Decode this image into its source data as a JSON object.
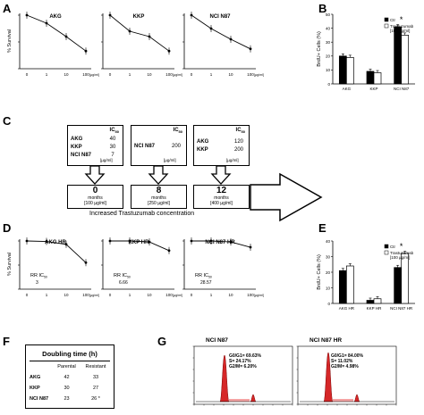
{
  "panel_labels": {
    "a": "A",
    "b": "B",
    "c": "C",
    "d": "D",
    "e": "E",
    "f": "F",
    "g": "G"
  },
  "survival_ylabel": "% Survival",
  "brdu_ylabel": "BrdU+ Cells (%)",
  "unit_label": "[µg/ml]",
  "survival_xticks": [
    "0",
    "1",
    "10",
    "100"
  ],
  "chart_data": [
    {
      "type": "line",
      "title": "AKG",
      "x": [
        "0",
        "1",
        "10",
        "100"
      ],
      "series": [
        {
          "values": [
            100,
            85,
            60,
            33
          ]
        }
      ],
      "ylim": [
        0,
        100
      ],
      "ylabel": "% Survival",
      "xlabel": "[µg/ml]"
    },
    {
      "type": "line",
      "title": "KKP",
      "x": [
        "0",
        "1",
        "10",
        "100"
      ],
      "series": [
        {
          "values": [
            100,
            70,
            60,
            33
          ]
        }
      ],
      "ylim": [
        0,
        100
      ],
      "xlabel": "[µg/ml]"
    },
    {
      "type": "line",
      "title": "NCI N87",
      "x": [
        "0",
        "1",
        "10",
        "100"
      ],
      "series": [
        {
          "values": [
            100,
            75,
            55,
            37
          ]
        }
      ],
      "ylim": [
        0,
        100
      ],
      "xlabel": "[µg/ml]"
    },
    {
      "type": "bar",
      "categories": [
        "AKG",
        "KKP",
        "NCI N87"
      ],
      "series": [
        {
          "name": "Ctr",
          "values": [
            20,
            9,
            41
          ]
        },
        {
          "name": "Trastuzumab [100 µg/ml]",
          "values": [
            19,
            8,
            35
          ]
        }
      ],
      "ylim": [
        0,
        50
      ],
      "yticks": [
        0,
        10,
        20,
        30,
        40,
        50
      ],
      "ylabel": "BrdU+ Cells (%)",
      "annotations": [
        "*"
      ]
    },
    {
      "type": "line",
      "title": "AKG HR",
      "x": [
        "0",
        "1",
        "10",
        "100"
      ],
      "series": [
        {
          "values": [
            100,
            99,
            93,
            55
          ]
        }
      ],
      "ylim": [
        0,
        100
      ],
      "ylabel": "% Survival",
      "xlabel": "[µg/ml]"
    },
    {
      "type": "line",
      "title": "KKP HR",
      "x": [
        "0",
        "1",
        "10",
        "100"
      ],
      "series": [
        {
          "values": [
            100,
            100,
            98,
            80
          ]
        }
      ],
      "ylim": [
        0,
        100
      ],
      "xlabel": "[µg/ml]"
    },
    {
      "type": "line",
      "title": "NCI N87 HR",
      "x": [
        "0",
        "1",
        "10",
        "100"
      ],
      "series": [
        {
          "values": [
            100,
            100,
            98,
            87
          ]
        }
      ],
      "ylim": [
        0,
        100
      ],
      "xlabel": "[µg/ml]"
    },
    {
      "type": "bar",
      "categories": [
        "AKG HR",
        "KKP HR",
        "NCI N87 HR"
      ],
      "series": [
        {
          "name": "Ctr",
          "values": [
            21,
            2,
            23
          ]
        },
        {
          "name": "Trastuzumab [100 µg/ml]",
          "values": [
            24,
            3,
            32
          ]
        }
      ],
      "ylim": [
        0,
        40
      ],
      "yticks": [
        0,
        10,
        20,
        30,
        40
      ],
      "ylabel": "BrdU+ Cells (%)",
      "annotations": [
        "*"
      ]
    }
  ],
  "rr": [
    {
      "label": "RR IC",
      "sub": "50",
      "value": "3"
    },
    {
      "label": "RR IC",
      "sub": "50",
      "value": "6.66"
    },
    {
      "label": "RR IC",
      "sub": "50",
      "value": "28.57"
    }
  ],
  "panel_c": {
    "ic_header": "IC",
    "ic_sub": "50",
    "box1": {
      "rows": [
        [
          "AKG",
          "40"
        ],
        [
          "KKP",
          "30"
        ],
        [
          "NCI N87",
          "7"
        ]
      ],
      "unit": "[µg/ml]"
    },
    "box2": {
      "rows": [
        [
          "NCI N87",
          "200"
        ]
      ],
      "unit": "[µg/ml]"
    },
    "box3": {
      "rows": [
        [
          "AKG",
          "120"
        ],
        [
          "KKP",
          "200"
        ]
      ],
      "unit": "[µg/ml]"
    },
    "time1": {
      "num": "0",
      "word": "months",
      "dose": "[100 µg/ml]"
    },
    "time2": {
      "num": "8",
      "word": "months",
      "dose": "[250 µg/ml]"
    },
    "time3": {
      "num": "12",
      "word": "months",
      "dose": "[400 µg/ml]"
    },
    "arrow_caption": "Increased Trastuzumab concentration"
  },
  "panel_f": {
    "title": "Doubling time (h)",
    "col_headers": [
      "Parental",
      "Resistant"
    ],
    "rows": [
      [
        "AKG",
        "42",
        "33"
      ],
      [
        "KKP",
        "30",
        "27"
      ],
      [
        "NCI N87",
        "23",
        "26 *"
      ]
    ]
  },
  "panel_g": [
    {
      "title": "NCI N87",
      "stats": [
        "G0/G1= 69.63%",
        "S= 24.17%",
        "G2/M= 6.20%"
      ]
    },
    {
      "title": "NCI N87 HR",
      "stats": [
        "G0/G1= 84.00%",
        "S= 11.02%",
        "G2/M= 4.98%"
      ]
    }
  ]
}
